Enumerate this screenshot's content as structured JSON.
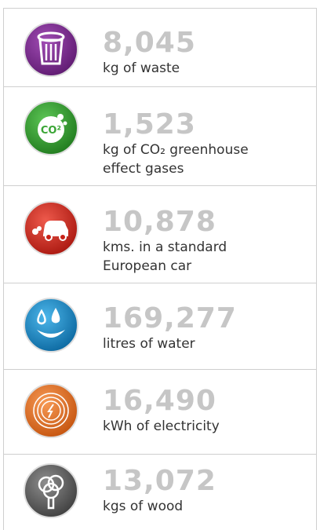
{
  "items": [
    {
      "value": "8,045",
      "lines": [
        "kg of waste"
      ]
    },
    {
      "value": "1,523",
      "icon_label": "CO²",
      "lines": [
        "kg of CO₂ greenhouse",
        "effect gases"
      ]
    },
    {
      "value": "10,878",
      "lines": [
        "kms. in a standard",
        "European car"
      ]
    },
    {
      "value": "169,277",
      "lines": [
        "litres of water"
      ]
    },
    {
      "value": "16,490",
      "lines": [
        "kWh of electricity"
      ]
    },
    {
      "value": "13,072",
      "lines": [
        "kgs of wood"
      ]
    }
  ]
}
